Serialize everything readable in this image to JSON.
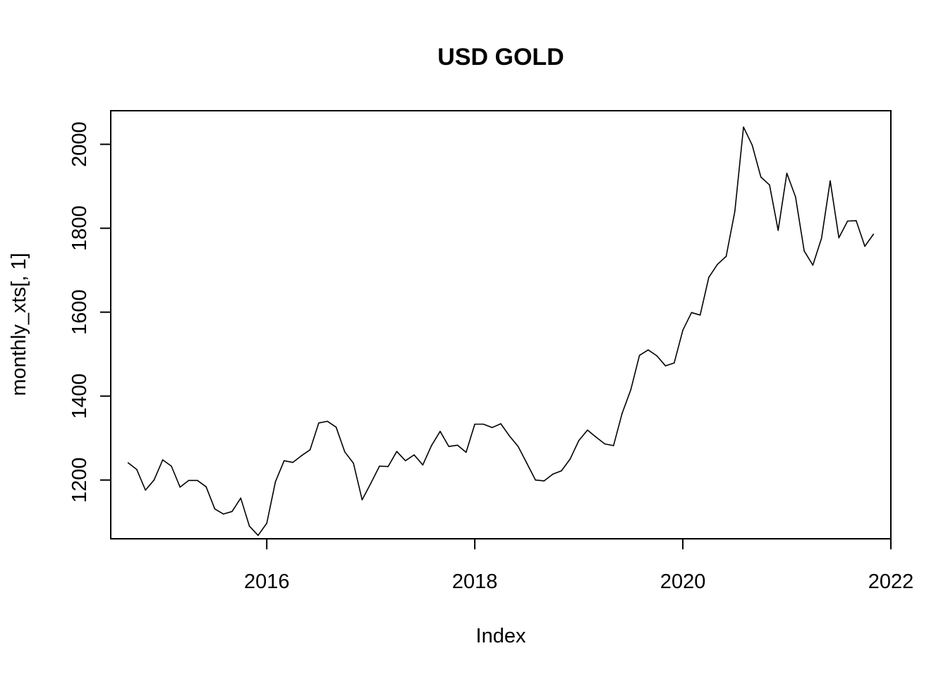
{
  "chart_data": {
    "type": "line",
    "title": "USD GOLD",
    "xlabel": "Index",
    "ylabel": "monthly_xts[, 1]",
    "xlim": [
      "2014-07",
      "2022-01"
    ],
    "ylim": [
      1060,
      2080
    ],
    "x_ticks": [
      "2016",
      "2018",
      "2020",
      "2022"
    ],
    "y_ticks": [
      "1200",
      "1400",
      "1600",
      "1800",
      "2000"
    ],
    "grid": false,
    "line_color": "#000000",
    "series": [
      {
        "x": [
          "2014-09",
          "2014-10",
          "2014-11",
          "2014-12",
          "2015-01",
          "2015-02",
          "2015-03",
          "2015-04",
          "2015-05",
          "2015-06",
          "2015-07",
          "2015-08",
          "2015-09",
          "2015-10",
          "2015-11",
          "2015-12",
          "2016-01",
          "2016-02",
          "2016-03",
          "2016-04",
          "2016-05",
          "2016-06",
          "2016-07",
          "2016-08",
          "2016-09",
          "2016-10",
          "2016-11",
          "2016-12",
          "2017-01",
          "2017-02",
          "2017-03",
          "2017-04",
          "2017-05",
          "2017-06",
          "2017-07",
          "2017-08",
          "2017-09",
          "2017-10",
          "2017-11",
          "2017-12",
          "2018-01",
          "2018-02",
          "2018-03",
          "2018-04",
          "2018-05",
          "2018-06",
          "2018-07",
          "2018-08",
          "2018-09",
          "2018-10",
          "2018-11",
          "2018-12",
          "2019-01",
          "2019-02",
          "2019-03",
          "2019-04",
          "2019-05",
          "2019-06",
          "2019-07",
          "2019-08",
          "2019-09",
          "2019-10",
          "2019-11",
          "2019-12",
          "2020-01",
          "2020-02",
          "2020-03",
          "2020-04",
          "2020-05",
          "2020-06",
          "2020-07",
          "2020-08",
          "2020-09",
          "2020-10",
          "2020-11",
          "2020-12",
          "2021-01",
          "2021-02",
          "2021-03",
          "2021-04",
          "2021-05",
          "2021-06",
          "2021-07",
          "2021-08",
          "2021-09",
          "2021-10",
          "2021-11"
        ],
        "values": [
          1241,
          1225,
          1176,
          1200,
          1248,
          1233,
          1183,
          1199,
          1199,
          1184,
          1131,
          1119,
          1125,
          1157,
          1090,
          1068,
          1097,
          1196,
          1246,
          1242,
          1258,
          1272,
          1336,
          1340,
          1326,
          1267,
          1240,
          1153,
          1192,
          1233,
          1232,
          1268,
          1246,
          1260,
          1236,
          1282,
          1316,
          1280,
          1283,
          1266,
          1333,
          1333,
          1325,
          1334,
          1305,
          1280,
          1240,
          1200,
          1198,
          1214,
          1222,
          1250,
          1294,
          1319,
          1302,
          1286,
          1282,
          1359,
          1415,
          1497,
          1510,
          1496,
          1472,
          1479,
          1557,
          1599,
          1593,
          1683,
          1714,
          1733,
          1840,
          2041,
          1998,
          1922,
          1903,
          1795,
          1931,
          1875,
          1746,
          1712,
          1776,
          1913,
          1777,
          1817,
          1818,
          1757,
          1786
        ]
      }
    ]
  }
}
